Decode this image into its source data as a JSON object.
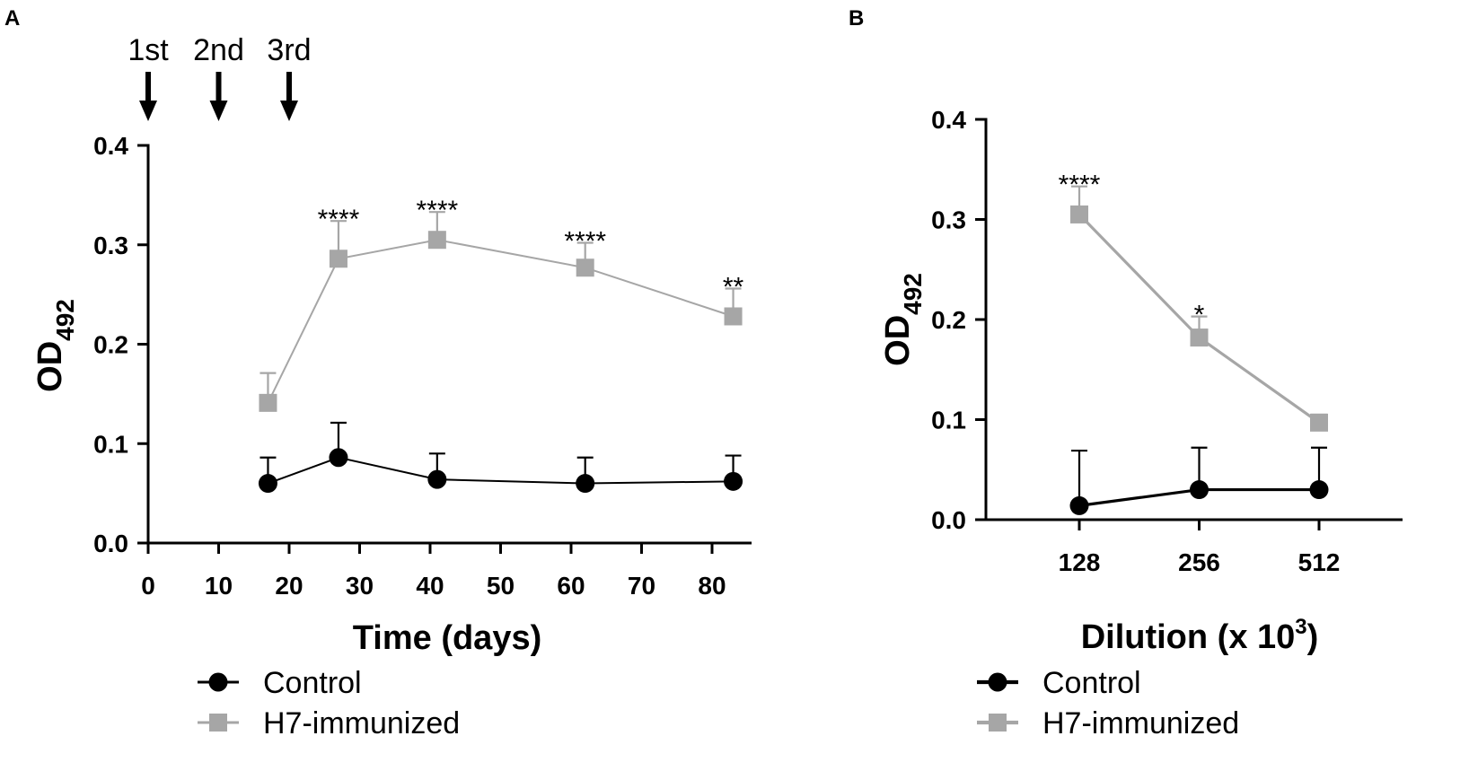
{
  "colors": {
    "control": "#000000",
    "immunized": "#A6A6A6"
  },
  "chart_data": [
    {
      "panel": "A",
      "type": "line",
      "xlabel": "Time (days)",
      "ylabel_main": "OD",
      "ylabel_sub": "492",
      "xlim": [
        0,
        85
      ],
      "ylim": [
        0,
        0.4
      ],
      "xticks": [
        0,
        10,
        20,
        30,
        40,
        50,
        60,
        70,
        80
      ],
      "xtick_labels": [
        "0",
        "10",
        "20",
        "30",
        "40",
        "50",
        "60",
        "70",
        "80"
      ],
      "yticks": [
        0,
        0.1,
        0.2,
        0.3,
        0.4
      ],
      "ytick_labels": [
        "0.0",
        "0.1",
        "0.2",
        "0.3",
        "0.4"
      ],
      "injections": [
        {
          "label": "1st",
          "x": 0
        },
        {
          "label": "2nd",
          "x": 10
        },
        {
          "label": "3rd",
          "x": 20
        }
      ],
      "series": [
        {
          "name": "Control",
          "key": "control",
          "marker": "circle",
          "x": [
            17,
            27,
            41,
            62,
            83
          ],
          "values": [
            0.06,
            0.086,
            0.064,
            0.06,
            0.062
          ],
          "errors": [
            0.026,
            0.035,
            0.026,
            0.026,
            0.026
          ]
        },
        {
          "name": "H7-immunized",
          "key": "immunized",
          "marker": "square",
          "x": [
            17,
            27,
            41,
            62,
            83
          ],
          "values": [
            0.141,
            0.286,
            0.305,
            0.277,
            0.228
          ],
          "errors": [
            0.03,
            0.038,
            0.028,
            0.025,
            0.028
          ]
        }
      ],
      "annotations": [
        {
          "x": 27,
          "y": 0.324,
          "text": "****"
        },
        {
          "x": 41,
          "y": 0.333,
          "text": "****"
        },
        {
          "x": 62,
          "y": 0.302,
          "text": "****"
        },
        {
          "x": 83,
          "y": 0.256,
          "text": "**"
        }
      ],
      "legend": {
        "position": "bottom",
        "entries": [
          "Control",
          "H7-immunized"
        ]
      }
    },
    {
      "panel": "B",
      "type": "line",
      "xlabel": "Dilution (x 10",
      "xlabel_sup": "3",
      "xlabel_end": ")",
      "ylabel_main": "OD",
      "ylabel_sub": "492",
      "categories": [
        "128",
        "256",
        "512"
      ],
      "ylim": [
        0,
        0.4
      ],
      "yticks": [
        0,
        0.1,
        0.2,
        0.3,
        0.4
      ],
      "ytick_labels": [
        "0.0",
        "0.1",
        "0.2",
        "0.3",
        "0.4"
      ],
      "series": [
        {
          "name": "Control",
          "key": "control",
          "marker": "circle",
          "values": [
            0.014,
            0.03,
            0.03
          ],
          "errors": [
            0.055,
            0.042,
            0.042
          ]
        },
        {
          "name": "H7-immunized",
          "key": "immunized",
          "marker": "square",
          "values": [
            0.305,
            0.182,
            0.097
          ],
          "errors": [
            0.028,
            0.021,
            0.008
          ]
        }
      ],
      "annotations": [
        {
          "category": "128",
          "y": 0.333,
          "text": "****"
        },
        {
          "category": "256",
          "y": 0.203,
          "text": "*"
        }
      ],
      "legend": {
        "position": "bottom",
        "entries": [
          "Control",
          "H7-immunized"
        ]
      }
    }
  ]
}
